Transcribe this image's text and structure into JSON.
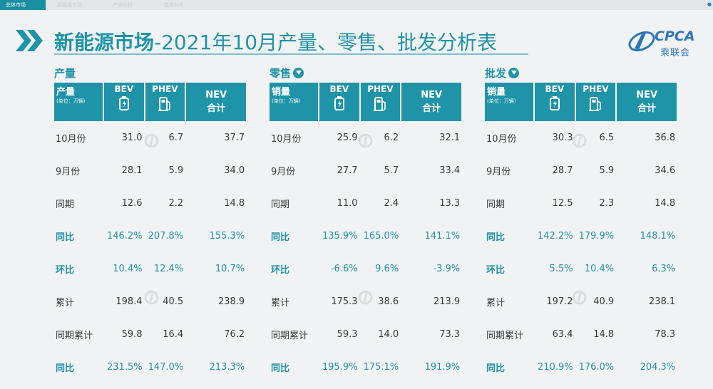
{
  "tabs": [
    "总体市场",
    "新能源市场",
    "产销分析",
    "批发分析"
  ],
  "title": {
    "bold": "新能源市场",
    "rest": "-2021年10月产量、零售、批发分析表"
  },
  "logo": {
    "latin": "CPCA",
    "chinese": "乘联会"
  },
  "accent_color": "#1f93a8",
  "sections": [
    {
      "title": "产量",
      "has_download": false,
      "header": {
        "label": "产量",
        "unit": "(单位：万辆)",
        "bev": "BEV",
        "phev": "PHEV",
        "nev1": "NEV",
        "nev2": "合计"
      },
      "rows": [
        {
          "label": "10月份",
          "bev": "31.0",
          "phev": "6.7",
          "nev": "37.7"
        },
        {
          "label": "9月份",
          "bev": "28.1",
          "phev": "5.9",
          "nev": "34.0"
        },
        {
          "label": "同期",
          "bev": "12.6",
          "phev": "2.2",
          "nev": "14.8"
        },
        {
          "label": "同比",
          "bev": "146.2%",
          "phev": "207.8%",
          "nev": "155.3%"
        },
        {
          "label": "环比",
          "bev": "10.4%",
          "phev": "12.4%",
          "nev": "10.7%"
        },
        {
          "label": "累计",
          "bev": "198.4",
          "phev": "40.5",
          "nev": "238.9"
        },
        {
          "label": "同期累计",
          "bev": "59.8",
          "phev": "16.4",
          "nev": "76.2"
        },
        {
          "label": "同比",
          "bev": "231.5%",
          "phev": "147.0%",
          "nev": "213.3%"
        }
      ]
    },
    {
      "title": "零售",
      "has_download": true,
      "header": {
        "label": "销量",
        "unit": "(单位：万辆)",
        "bev": "BEV",
        "phev": "PHEV",
        "nev1": "NEV",
        "nev2": "合计"
      },
      "rows": [
        {
          "label": "10月份",
          "bev": "25.9",
          "phev": "6.2",
          "nev": "32.1"
        },
        {
          "label": "9月份",
          "bev": "27.7",
          "phev": "5.7",
          "nev": "33.4"
        },
        {
          "label": "同期",
          "bev": "11.0",
          "phev": "2.4",
          "nev": "13.3"
        },
        {
          "label": "同比",
          "bev": "135.9%",
          "phev": "165.0%",
          "nev": "141.1%"
        },
        {
          "label": "环比",
          "bev": "-6.6%",
          "phev": "9.6%",
          "nev": "-3.9%"
        },
        {
          "label": "累计",
          "bev": "175.3",
          "phev": "38.6",
          "nev": "213.9"
        },
        {
          "label": "同期累计",
          "bev": "59.3",
          "phev": "14.0",
          "nev": "73.3"
        },
        {
          "label": "同比",
          "bev": "195.9%",
          "phev": "175.1%",
          "nev": "191.9%"
        }
      ]
    },
    {
      "title": "批发",
      "has_download": true,
      "header": {
        "label": "销量",
        "unit": "(单位：万辆)",
        "bev": "BEV",
        "phev": "PHEV",
        "nev1": "NEV",
        "nev2": "合计"
      },
      "rows": [
        {
          "label": "10月份",
          "bev": "30.3",
          "phev": "6.5",
          "nev": "36.8"
        },
        {
          "label": "9月份",
          "bev": "28.7",
          "phev": "5.9",
          "nev": "34.6"
        },
        {
          "label": "同期",
          "bev": "12.5",
          "phev": "2.3",
          "nev": "14.8"
        },
        {
          "label": "同比",
          "bev": "142.2%",
          "phev": "179.9%",
          "nev": "148.1%"
        },
        {
          "label": "环比",
          "bev": "5.5%",
          "phev": "10.4%",
          "nev": "6.3%"
        },
        {
          "label": "累计",
          "bev": "197.2",
          "phev": "40.9",
          "nev": "238.1"
        },
        {
          "label": "同期累计",
          "bev": "63.4",
          "phev": "14.8",
          "nev": "78.3"
        },
        {
          "label": "同比",
          "bev": "210.9%",
          "phev": "176.0%",
          "nev": "204.3%"
        }
      ]
    }
  ]
}
